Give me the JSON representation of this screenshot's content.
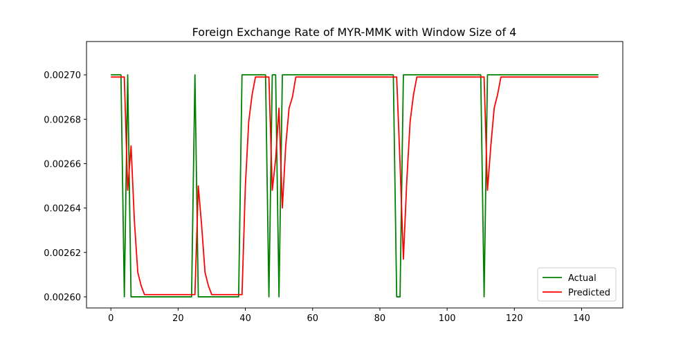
{
  "chart_data": {
    "type": "line",
    "title": "Foreign Exchange Rate of MYR-MMK with Window Size of 4",
    "xlabel": "",
    "ylabel": "",
    "xlim": [
      -7.25,
      152.25
    ],
    "ylim": [
      0.002595,
      0.002715
    ],
    "x_ticks": [
      0,
      20,
      40,
      60,
      80,
      100,
      120,
      140
    ],
    "y_ticks": [
      0.0026,
      0.00262,
      0.00264,
      0.00266,
      0.00268,
      0.0027
    ],
    "y_tick_labels": [
      "0.00260",
      "0.00262",
      "0.00264",
      "0.00266",
      "0.00268",
      "0.00270"
    ],
    "grid": false,
    "legend_position": "lower-right",
    "series": [
      {
        "name": "Actual",
        "color": "#008000",
        "points": [
          [
            0,
            0.0027
          ],
          [
            3,
            0.0027
          ],
          [
            4,
            0.0026
          ],
          [
            5,
            0.0027
          ],
          [
            6,
            0.0026
          ],
          [
            24,
            0.0026
          ],
          [
            25,
            0.0027
          ],
          [
            26,
            0.0026
          ],
          [
            38,
            0.0026
          ],
          [
            39,
            0.0027
          ],
          [
            46,
            0.0027
          ],
          [
            47,
            0.0026
          ],
          [
            48,
            0.0027
          ],
          [
            49,
            0.0027
          ],
          [
            50,
            0.0026
          ],
          [
            51,
            0.0027
          ],
          [
            84,
            0.0027
          ],
          [
            85,
            0.0026
          ],
          [
            86,
            0.0026
          ],
          [
            87,
            0.0027
          ],
          [
            110,
            0.0027
          ],
          [
            111,
            0.0026
          ],
          [
            112,
            0.0027
          ],
          [
            145,
            0.0027
          ]
        ]
      },
      {
        "name": "Predicted",
        "color": "#ff0000",
        "points": [
          [
            0,
            0.002699
          ],
          [
            4,
            0.002699
          ],
          [
            5,
            0.002648
          ],
          [
            6,
            0.002668
          ],
          [
            7,
            0.002634
          ],
          [
            8,
            0.002611
          ],
          [
            9,
            0.002605
          ],
          [
            10,
            0.002601
          ],
          [
            25,
            0.002601
          ],
          [
            26,
            0.00265
          ],
          [
            27,
            0.002632
          ],
          [
            28,
            0.002611
          ],
          [
            29,
            0.002605
          ],
          [
            30,
            0.002601
          ],
          [
            39,
            0.002601
          ],
          [
            40,
            0.00265
          ],
          [
            41,
            0.002679
          ],
          [
            42,
            0.002691
          ],
          [
            43,
            0.002699
          ],
          [
            47,
            0.002699
          ],
          [
            48,
            0.002648
          ],
          [
            49,
            0.002662
          ],
          [
            50,
            0.002685
          ],
          [
            51,
            0.00264
          ],
          [
            52,
            0.002668
          ],
          [
            53,
            0.002685
          ],
          [
            54,
            0.00269
          ],
          [
            55,
            0.002699
          ],
          [
            85,
            0.002699
          ],
          [
            86,
            0.00266
          ],
          [
            87,
            0.002617
          ],
          [
            88,
            0.002652
          ],
          [
            89,
            0.002679
          ],
          [
            90,
            0.002691
          ],
          [
            91,
            0.002699
          ],
          [
            111,
            0.002699
          ],
          [
            112,
            0.002648
          ],
          [
            113,
            0.002668
          ],
          [
            114,
            0.002685
          ],
          [
            115,
            0.002691
          ],
          [
            116,
            0.002699
          ],
          [
            145,
            0.002699
          ]
        ]
      }
    ]
  }
}
